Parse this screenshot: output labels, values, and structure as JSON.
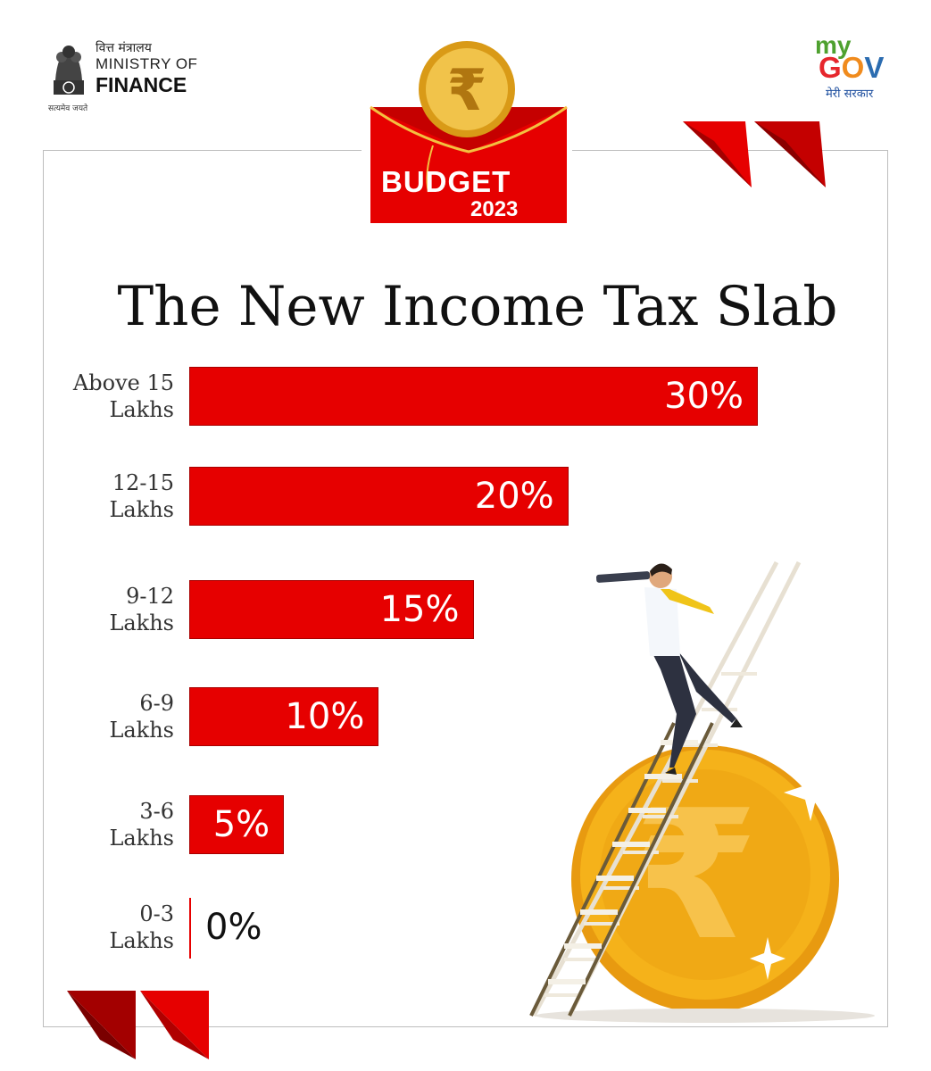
{
  "ministry": {
    "hindi_name": "वित्त मंत्रालय",
    "name_line1": "MINISTRY OF",
    "name_line2": "FINANCE",
    "motto": "सत्यमेव जयते"
  },
  "mygov": {
    "my": "my",
    "gov_letters": [
      {
        "char": "G",
        "color": "#e6272d"
      },
      {
        "char": "O",
        "color": "#f08b1d"
      },
      {
        "char": "V",
        "color": "#2b6cb0"
      }
    ],
    "tagline": "मेरी सरकार"
  },
  "budget_badge": {
    "label": "BUDGET",
    "year": "2023",
    "symbol": "₹"
  },
  "title": "The New Income Tax Slab",
  "colors": {
    "bar": "#e60000",
    "bar_dark": "#a80000",
    "coin": "#f5b21a",
    "chevron": "#d40000"
  },
  "chart_data": {
    "type": "bar",
    "orientation": "horizontal",
    "title": "The New Income Tax Slab",
    "categories": [
      "Above 15 Lakhs",
      "12-15 Lakhs",
      "9-12 Lakhs",
      "6-9 Lakhs",
      "3-6 Lakhs",
      "0-3 Lakhs"
    ],
    "values": [
      30,
      20,
      15,
      10,
      5,
      0
    ],
    "value_labels": [
      "30%",
      "20%",
      "15%",
      "10%",
      "5%",
      "0%"
    ],
    "category_lines": [
      [
        "Above 15",
        "Lakhs"
      ],
      [
        "12-15",
        "Lakhs"
      ],
      [
        "9-12",
        "Lakhs"
      ],
      [
        "6-9",
        "Lakhs"
      ],
      [
        "3-6",
        "Lakhs"
      ],
      [
        "0-3",
        "Lakhs"
      ]
    ],
    "xlim": [
      0,
      30
    ],
    "grid": false,
    "legend": "none"
  }
}
